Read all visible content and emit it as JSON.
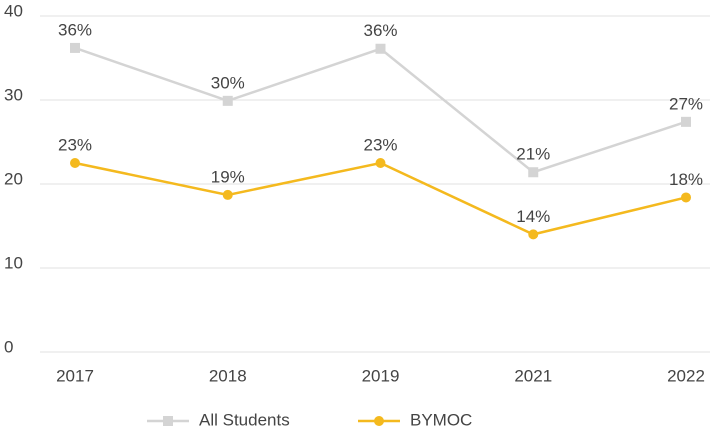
{
  "chart_data": {
    "type": "line",
    "categories": [
      "2017",
      "2018",
      "2019",
      "2021",
      "2022"
    ],
    "series": [
      {
        "name": "All Students",
        "color": "#d4d4d4",
        "marker": "square",
        "values": [
          36.2,
          29.9,
          36.1,
          21.4,
          27.4
        ],
        "value_labels": [
          "36%",
          "30%",
          "36%",
          "21%",
          "27%"
        ]
      },
      {
        "name": "BYMOC",
        "color": "#f4b91e",
        "marker": "circle",
        "values": [
          22.5,
          18.7,
          22.5,
          14.0,
          18.4
        ],
        "value_labels": [
          "23%",
          "19%",
          "23%",
          "14%",
          "18%"
        ]
      }
    ],
    "ylim": [
      0,
      40
    ],
    "yticks": [
      0,
      10,
      20,
      30,
      40
    ],
    "grid": true,
    "legend": "bottom"
  }
}
